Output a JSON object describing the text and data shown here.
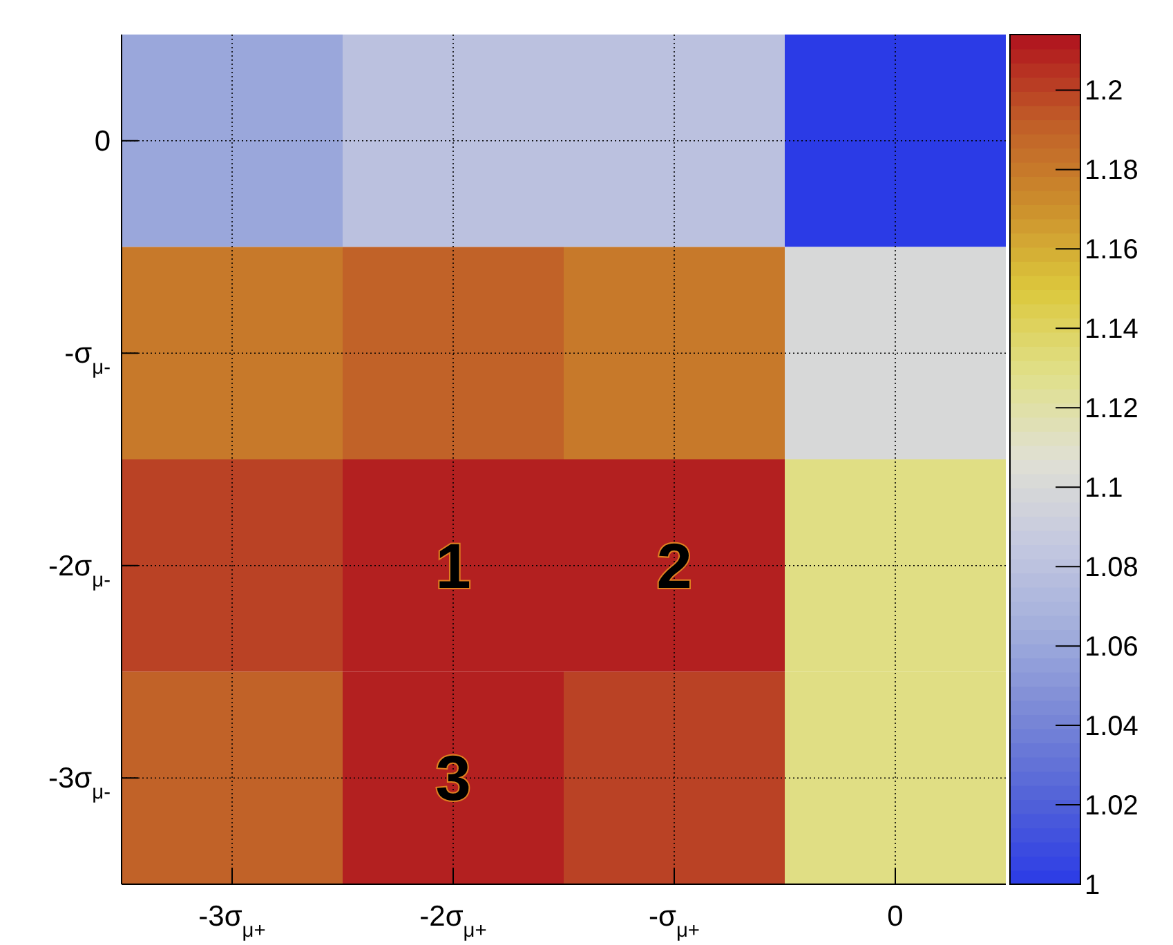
{
  "chart_data": {
    "type": "heatmap",
    "categories": [
      "-3σ$_{μ+}$",
      "-2σ$_{μ+}$",
      "-σ$_{μ+}$",
      "0"
    ],
    "y_categories": [
      "0",
      "-σ$_{μ-}$",
      "-2σ$_{μ-}$",
      "-3σ$_{μ-}$"
    ],
    "cells": [
      [
        1.06,
        1.08,
        1.08,
        1.0
      ],
      [
        1.18,
        1.19,
        1.18,
        1.1
      ],
      [
        1.2,
        1.21,
        1.21,
        1.13
      ],
      [
        1.19,
        1.21,
        1.2,
        1.13
      ]
    ],
    "clim": [
      1,
      1.214
    ],
    "cticks": [
      1,
      1.02,
      1.04,
      1.06,
      1.08,
      1.1,
      1.12,
      1.14,
      1.16,
      1.18,
      1.2
    ],
    "colors": [
      "#2b3be6",
      "#5262d8",
      "#7a88d6",
      "#a2aedc",
      "#c4c8e0",
      "#e0e0d4",
      "#e0e08a",
      "#dcc83c",
      "#cc8e2c",
      "#c05c28",
      "#b0121e"
    ],
    "grid": true,
    "annotations": [
      "1",
      "2",
      "3"
    ]
  }
}
